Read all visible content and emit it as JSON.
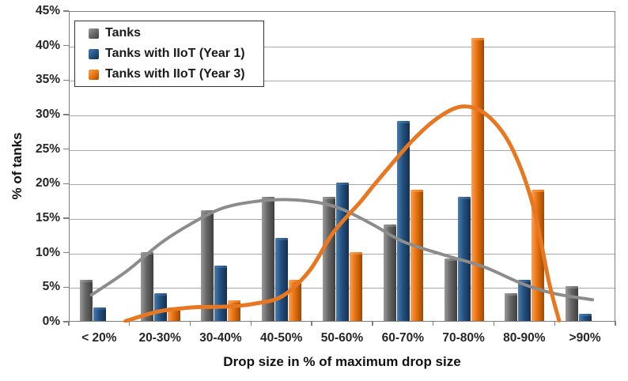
{
  "chart_data": {
    "type": "bar",
    "categories": [
      "< 20%",
      "20-30%",
      "30-40%",
      "40-50%",
      "50-60%",
      "60-70%",
      "70-80%",
      "80-90%",
      ">90%"
    ],
    "series": [
      {
        "name": "Tanks",
        "values": [
          6,
          10,
          16,
          18,
          18,
          14,
          9,
          4,
          5
        ],
        "color": "#666666",
        "color_light": "#9a9a9a",
        "color_dark": "#3f3f3f"
      },
      {
        "name": "Tanks with IIoT (Year 1)",
        "values": [
          2,
          4,
          8,
          12,
          20,
          29,
          18,
          6,
          1
        ],
        "color": "#235180",
        "color_light": "#4a7cb0",
        "color_dark": "#152f4e"
      },
      {
        "name": "Tanks with IIoT (Year 3)",
        "values": [
          0,
          2,
          3,
          6,
          10,
          19,
          41,
          19,
          0
        ],
        "color": "#e8710d",
        "color_light": "#f7a259",
        "color_dark": "#9c4a06"
      }
    ],
    "trendlines": [
      {
        "name": "Tanks trend",
        "color": "#8c8c8c",
        "stroke_width": 4,
        "points": [
          [
            0.36,
            4.0
          ],
          [
            0.95,
            7.5
          ],
          [
            1.5,
            11.5
          ],
          [
            2.0,
            14.3
          ],
          [
            2.5,
            16.5
          ],
          [
            3.03,
            17.5
          ],
          [
            3.56,
            17.8
          ],
          [
            4.08,
            17.4
          ],
          [
            4.49,
            16.4
          ],
          [
            4.99,
            14.2
          ],
          [
            5.5,
            11.7
          ],
          [
            6.16,
            9.8
          ],
          [
            6.81,
            8.1
          ],
          [
            7.46,
            5.6
          ],
          [
            7.98,
            4.2
          ],
          [
            8.61,
            3.3
          ]
        ]
      },
      {
        "name": "Tanks with IIoT (Year 3) trend",
        "color": "#e87722",
        "stroke_width": 5,
        "points": [
          [
            0.92,
            0.2
          ],
          [
            1.47,
            1.6
          ],
          [
            2.06,
            2.2
          ],
          [
            2.58,
            2.3
          ],
          [
            3.03,
            2.7
          ],
          [
            3.5,
            3.8
          ],
          [
            3.95,
            7.5
          ],
          [
            4.34,
            13.0
          ],
          [
            4.79,
            17.5
          ],
          [
            5.05,
            20.3
          ],
          [
            5.64,
            26.3
          ],
          [
            6.09,
            29.8
          ],
          [
            6.49,
            31.3
          ],
          [
            6.88,
            30.0
          ],
          [
            7.27,
            25.5
          ],
          [
            7.63,
            17.0
          ],
          [
            7.89,
            6.0
          ],
          [
            8.06,
            0.3
          ]
        ]
      }
    ],
    "xlabel": "Drop size in % of maximum drop size",
    "ylabel": "% of tanks",
    "ylim": [
      0,
      45
    ],
    "ytick_step": 5,
    "ytick_labels": [
      "0%",
      "5%",
      "10%",
      "15%",
      "20%",
      "25%",
      "30%",
      "35%",
      "40%",
      "45%"
    ],
    "grid": "horizontal",
    "legend_position": "top-left"
  }
}
